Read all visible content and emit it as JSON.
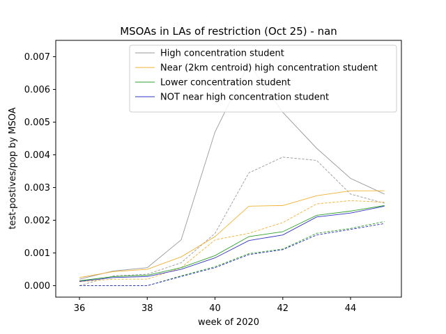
{
  "chart_data": {
    "type": "line",
    "title": "MSOAs in LAs of restriction (Oct 25) - nan",
    "xlabel": "week of 2020",
    "ylabel": "test-postives/pop by MSOA",
    "xlim": [
      35.3,
      45.5
    ],
    "ylim": [
      -0.00035,
      0.0075
    ],
    "xticks": [
      36,
      38,
      40,
      42,
      44
    ],
    "yticks": [
      0.0,
      0.001,
      0.002,
      0.003,
      0.004,
      0.005,
      0.006,
      0.007
    ],
    "ytick_labels": [
      "0.000",
      "0.001",
      "0.002",
      "0.003",
      "0.004",
      "0.005",
      "0.006",
      "0.007"
    ],
    "legend_position": "upper right",
    "x": [
      36,
      37,
      38,
      39,
      40,
      41,
      42,
      43,
      44,
      45
    ],
    "series": [
      {
        "name": "High concentration student",
        "color": "#999999",
        "style": "solid",
        "values": [
          0.0002,
          0.00045,
          0.00055,
          0.0014,
          0.0047,
          0.0068,
          0.0053,
          0.0042,
          0.00328,
          0.0028
        ]
      },
      {
        "name": "High concentration student",
        "color": "#999999",
        "style": "dashed",
        "legend": false,
        "values": [
          0.0,
          0.0003,
          0.00035,
          0.0007,
          0.0016,
          0.00345,
          0.00393,
          0.00383,
          0.0028,
          0.00252
        ]
      },
      {
        "name": "Near (2km centroid) high concentration student",
        "color": "#f0b030",
        "style": "solid",
        "values": [
          0.00025,
          0.00043,
          0.0005,
          0.00088,
          0.0015,
          0.00243,
          0.00245,
          0.00275,
          0.0029,
          0.0029
        ]
      },
      {
        "name": "Near (2km centroid) high concentration student",
        "color": "#f0b030",
        "style": "dashed",
        "legend": false,
        "values": [
          0.00012,
          0.0002,
          0.0002,
          0.00055,
          0.0014,
          0.0016,
          0.00193,
          0.0025,
          0.0026,
          0.00255
        ]
      },
      {
        "name": "Lower concentration student",
        "color": "#2ca02c",
        "style": "solid",
        "values": [
          0.00015,
          0.00028,
          0.00032,
          0.00055,
          0.00092,
          0.0015,
          0.00165,
          0.00215,
          0.00228,
          0.00245
        ]
      },
      {
        "name": "Lower concentration student",
        "color": "#2ca02c",
        "style": "dashed",
        "legend": false,
        "values": [
          0.0,
          0.0,
          0.0,
          0.0003,
          0.00058,
          0.00098,
          0.00112,
          0.0016,
          0.00175,
          0.00196
        ]
      },
      {
        "name": "NOT near high concentration student",
        "color": "#3030c0",
        "style": "solid",
        "values": [
          0.00013,
          0.00025,
          0.00028,
          0.0005,
          0.00085,
          0.00138,
          0.00155,
          0.0021,
          0.00222,
          0.00243
        ]
      },
      {
        "name": "NOT near high concentration student",
        "color": "#3030c0",
        "style": "dashed",
        "legend": false,
        "values": [
          0.0,
          0.0,
          0.0,
          0.00028,
          0.00055,
          0.00095,
          0.0011,
          0.00155,
          0.00172,
          0.0019
        ]
      }
    ]
  }
}
